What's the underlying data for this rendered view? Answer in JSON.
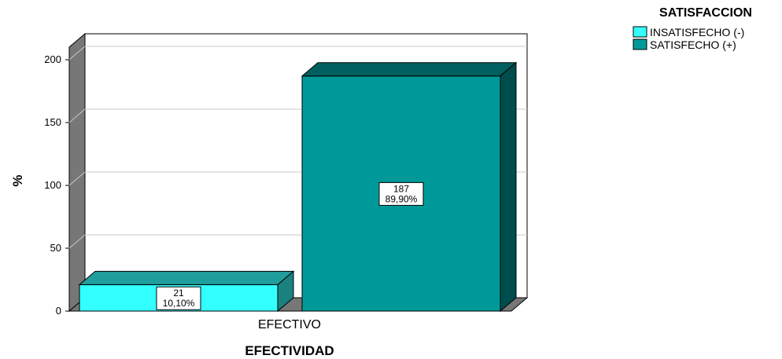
{
  "chart_data": {
    "type": "bar",
    "categories": [
      "EFECTIVO"
    ],
    "series": [
      {
        "name": "INSATISFECHO (-)",
        "values": [
          21
        ],
        "percent_label": "10,10%",
        "color": "#33FFFF"
      },
      {
        "name": "SATISFECHO (+)",
        "values": [
          187
        ],
        "percent_label": "89,90%",
        "color": "#009999"
      }
    ],
    "title": "",
    "xlabel": "EFECTIVIDAD",
    "ylabel": "%",
    "ylim": [
      0,
      210
    ],
    "yticks": [
      0,
      50,
      100,
      150,
      200
    ],
    "grid": true,
    "legend_title": "SATISFACCION",
    "legend_position": "top-right",
    "three_d": true
  }
}
